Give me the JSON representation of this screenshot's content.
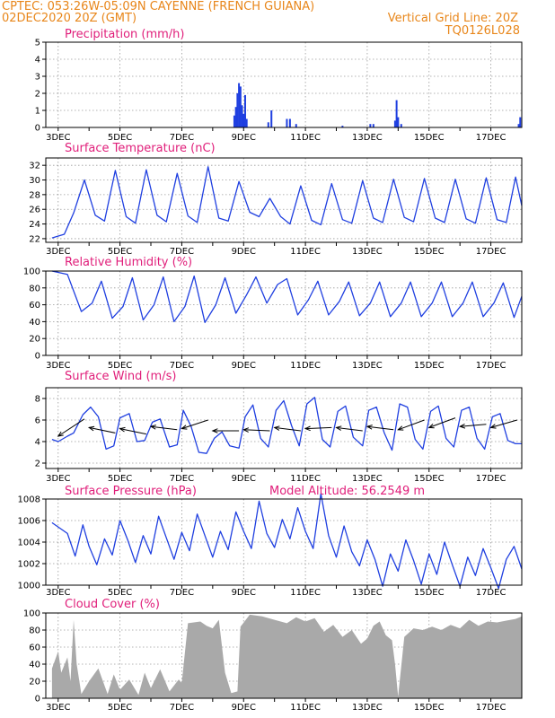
{
  "header": {
    "line1": "CPTEC:   053:26W-05:09N   CAYENNE (FRENCH GUIANA)",
    "line2_left": "02DEC2020 20Z (GMT)",
    "line2_right": "Vertical Grid Line: 20Z",
    "line3_right": "TQ0126L028"
  },
  "colors": {
    "header": "#e8861a",
    "title": "#e01e7a",
    "series": "#1f3fe0",
    "cloud": "#a9a9a9",
    "grid": "#9a9a9a"
  },
  "chart_data": [
    {
      "id": "precip",
      "type": "bar",
      "title": "Precipitation (mm/h)",
      "x_tick_labels": [
        "3DEC",
        "5DEC",
        "7DEC",
        "9DEC",
        "11DEC",
        "13DEC",
        "15DEC",
        "17DEC"
      ],
      "ylim": [
        0,
        5
      ],
      "y_ticks": [
        0,
        1,
        2,
        3,
        4,
        5
      ],
      "grid": true,
      "bars": [
        {
          "day": 8.7,
          "value": 0.7
        },
        {
          "day": 8.75,
          "value": 1.2
        },
        {
          "day": 8.8,
          "value": 2.0
        },
        {
          "day": 8.85,
          "value": 2.6
        },
        {
          "day": 8.9,
          "value": 2.4
        },
        {
          "day": 8.95,
          "value": 1.3
        },
        {
          "day": 9.0,
          "value": 0.8
        },
        {
          "day": 9.05,
          "value": 1.9
        },
        {
          "day": 9.1,
          "value": 0.5
        },
        {
          "day": 9.8,
          "value": 0.3
        },
        {
          "day": 9.9,
          "value": 1.0
        },
        {
          "day": 10.4,
          "value": 0.5
        },
        {
          "day": 10.5,
          "value": 0.5
        },
        {
          "day": 10.7,
          "value": 0.2
        },
        {
          "day": 12.2,
          "value": 0.1
        },
        {
          "day": 13.1,
          "value": 0.2
        },
        {
          "day": 13.2,
          "value": 0.2
        },
        {
          "day": 13.9,
          "value": 0.4
        },
        {
          "day": 13.95,
          "value": 1.6
        },
        {
          "day": 14.0,
          "value": 0.6
        },
        {
          "day": 14.1,
          "value": 0.2
        },
        {
          "day": 17.9,
          "value": 0.2
        },
        {
          "day": 17.95,
          "value": 0.6
        }
      ]
    },
    {
      "id": "temp",
      "type": "line",
      "title": "Surface Temperature (nC)",
      "x_tick_labels": [
        "3DEC",
        "5DEC",
        "7DEC",
        "9DEC",
        "11DEC",
        "13DEC",
        "15DEC",
        "17DEC"
      ],
      "ylim": [
        21.5,
        33
      ],
      "y_ticks": [
        22,
        24,
        26,
        28,
        30,
        32
      ],
      "grid": true,
      "points": [
        [
          2.8,
          22.1
        ],
        [
          3.2,
          22.6
        ],
        [
          3.5,
          25.5
        ],
        [
          3.85,
          30.0
        ],
        [
          4.2,
          25.2
        ],
        [
          4.5,
          24.4
        ],
        [
          4.85,
          31.3
        ],
        [
          5.2,
          25.0
        ],
        [
          5.5,
          24.1
        ],
        [
          5.85,
          31.4
        ],
        [
          6.2,
          25.2
        ],
        [
          6.5,
          24.3
        ],
        [
          6.85,
          30.9
        ],
        [
          7.2,
          25.1
        ],
        [
          7.5,
          24.2
        ],
        [
          7.85,
          31.8
        ],
        [
          8.2,
          24.8
        ],
        [
          8.5,
          24.4
        ],
        [
          8.85,
          29.8
        ],
        [
          9.2,
          25.6
        ],
        [
          9.5,
          25.0
        ],
        [
          9.85,
          27.5
        ],
        [
          10.2,
          25.0
        ],
        [
          10.5,
          24.0
        ],
        [
          10.85,
          29.2
        ],
        [
          11.2,
          24.5
        ],
        [
          11.5,
          23.9
        ],
        [
          11.85,
          29.5
        ],
        [
          12.2,
          24.6
        ],
        [
          12.5,
          24.1
        ],
        [
          12.85,
          29.9
        ],
        [
          13.2,
          24.8
        ],
        [
          13.5,
          24.2
        ],
        [
          13.85,
          30.1
        ],
        [
          14.2,
          24.9
        ],
        [
          14.5,
          24.3
        ],
        [
          14.85,
          30.2
        ],
        [
          15.2,
          24.8
        ],
        [
          15.5,
          24.2
        ],
        [
          15.85,
          30.1
        ],
        [
          16.2,
          24.7
        ],
        [
          16.5,
          24.1
        ],
        [
          16.85,
          30.3
        ],
        [
          17.2,
          24.6
        ],
        [
          17.5,
          24.2
        ],
        [
          17.8,
          30.4
        ],
        [
          18.0,
          26.5
        ]
      ]
    },
    {
      "id": "rh",
      "type": "line",
      "title": "Relative Humidity (%)",
      "x_tick_labels": [
        "3DEC",
        "5DEC",
        "7DEC",
        "9DEC",
        "11DEC",
        "13DEC",
        "15DEC",
        "17DEC"
      ],
      "ylim": [
        0,
        100
      ],
      "y_ticks": [
        0,
        20,
        40,
        60,
        80,
        100
      ],
      "grid": true,
      "points": [
        [
          2.8,
          100
        ],
        [
          3.3,
          96
        ],
        [
          3.75,
          52
        ],
        [
          4.1,
          62
        ],
        [
          4.4,
          88
        ],
        [
          4.75,
          44
        ],
        [
          5.1,
          58
        ],
        [
          5.4,
          92
        ],
        [
          5.75,
          42
        ],
        [
          6.1,
          60
        ],
        [
          6.4,
          93
        ],
        [
          6.75,
          40
        ],
        [
          7.1,
          58
        ],
        [
          7.4,
          94
        ],
        [
          7.75,
          39
        ],
        [
          8.1,
          60
        ],
        [
          8.4,
          92
        ],
        [
          8.75,
          50
        ],
        [
          9.1,
          72
        ],
        [
          9.4,
          93
        ],
        [
          9.75,
          62
        ],
        [
          10.1,
          84
        ],
        [
          10.4,
          91
        ],
        [
          10.75,
          48
        ],
        [
          11.1,
          66
        ],
        [
          11.4,
          88
        ],
        [
          11.75,
          48
        ],
        [
          12.1,
          64
        ],
        [
          12.4,
          87
        ],
        [
          12.75,
          47
        ],
        [
          13.1,
          62
        ],
        [
          13.4,
          87
        ],
        [
          13.75,
          46
        ],
        [
          14.1,
          62
        ],
        [
          14.4,
          87
        ],
        [
          14.75,
          46
        ],
        [
          15.1,
          62
        ],
        [
          15.4,
          87
        ],
        [
          15.75,
          46
        ],
        [
          16.1,
          62
        ],
        [
          16.4,
          87
        ],
        [
          16.75,
          46
        ],
        [
          17.1,
          62
        ],
        [
          17.4,
          86
        ],
        [
          17.75,
          45
        ],
        [
          18.0,
          70
        ]
      ]
    },
    {
      "id": "wind",
      "type": "line",
      "title": "Surface Wind (m/s)",
      "x_tick_labels": [
        "3DEC",
        "5DEC",
        "7DEC",
        "9DEC",
        "11DEC",
        "13DEC",
        "15DEC",
        "17DEC"
      ],
      "ylim": [
        1.5,
        9
      ],
      "y_ticks": [
        2,
        4,
        6,
        8
      ],
      "grid": true,
      "points": [
        [
          2.8,
          4.2
        ],
        [
          3.0,
          4.0
        ],
        [
          3.3,
          4.5
        ],
        [
          3.5,
          4.8
        ],
        [
          3.8,
          6.5
        ],
        [
          4.05,
          7.2
        ],
        [
          4.3,
          6.3
        ],
        [
          4.55,
          3.3
        ],
        [
          4.8,
          3.6
        ],
        [
          5.0,
          6.2
        ],
        [
          5.3,
          6.6
        ],
        [
          5.55,
          4.0
        ],
        [
          5.8,
          4.1
        ],
        [
          6.05,
          5.8
        ],
        [
          6.3,
          6.1
        ],
        [
          6.6,
          3.5
        ],
        [
          6.85,
          3.7
        ],
        [
          7.05,
          6.9
        ],
        [
          7.3,
          5.4
        ],
        [
          7.55,
          3.0
        ],
        [
          7.8,
          2.9
        ],
        [
          8.05,
          4.3
        ],
        [
          8.3,
          4.9
        ],
        [
          8.55,
          3.6
        ],
        [
          8.85,
          3.4
        ],
        [
          9.05,
          6.3
        ],
        [
          9.3,
          7.4
        ],
        [
          9.55,
          4.3
        ],
        [
          9.8,
          3.5
        ],
        [
          10.05,
          6.9
        ],
        [
          10.3,
          7.8
        ],
        [
          10.55,
          5.5
        ],
        [
          10.8,
          3.6
        ],
        [
          11.05,
          7.5
        ],
        [
          11.3,
          8.1
        ],
        [
          11.55,
          4.2
        ],
        [
          11.8,
          3.5
        ],
        [
          12.05,
          6.8
        ],
        [
          12.3,
          7.3
        ],
        [
          12.55,
          4.4
        ],
        [
          12.85,
          3.6
        ],
        [
          13.05,
          6.9
        ],
        [
          13.3,
          7.2
        ],
        [
          13.55,
          4.8
        ],
        [
          13.8,
          3.2
        ],
        [
          14.05,
          7.5
        ],
        [
          14.3,
          7.2
        ],
        [
          14.55,
          4.2
        ],
        [
          14.8,
          3.3
        ],
        [
          15.05,
          6.8
        ],
        [
          15.3,
          7.3
        ],
        [
          15.55,
          4.3
        ],
        [
          15.8,
          3.5
        ],
        [
          16.05,
          6.9
        ],
        [
          16.3,
          7.2
        ],
        [
          16.55,
          4.3
        ],
        [
          16.8,
          3.3
        ],
        [
          17.05,
          6.3
        ],
        [
          17.3,
          6.6
        ],
        [
          17.55,
          4.1
        ],
        [
          17.8,
          3.8
        ],
        [
          18.0,
          3.8
        ]
      ],
      "vectors": [
        [
          3.0,
          4.5,
          6.1
        ],
        [
          4.0,
          5.3,
          4.8
        ],
        [
          5.0,
          5.2,
          4.7
        ],
        [
          6.0,
          5.4,
          5.1
        ],
        [
          7.0,
          5.2,
          6.0
        ],
        [
          8.0,
          5.0,
          5.0
        ],
        [
          9.0,
          5.1,
          5.0
        ],
        [
          10.0,
          5.3,
          5.0
        ],
        [
          11.0,
          5.2,
          5.3
        ],
        [
          12.0,
          5.3,
          5.0
        ],
        [
          13.0,
          5.4,
          5.1
        ],
        [
          14.0,
          5.1,
          6.0
        ],
        [
          15.0,
          5.3,
          6.2
        ],
        [
          16.0,
          5.4,
          5.6
        ],
        [
          17.0,
          5.3,
          6.0
        ]
      ]
    },
    {
      "id": "pressure",
      "type": "line",
      "title": "Surface Pressure (hPa)",
      "annotation": "Model Altitude: 56.2549  m",
      "x_tick_labels": [
        "3DEC",
        "5DEC",
        "7DEC",
        "9DEC",
        "11DEC",
        "13DEC",
        "15DEC",
        "17DEC"
      ],
      "ylim": [
        1000,
        1008
      ],
      "y_ticks": [
        1000,
        1002,
        1004,
        1006,
        1008
      ],
      "grid": true,
      "points": [
        [
          2.8,
          1005.8
        ],
        [
          3.05,
          1005.3
        ],
        [
          3.3,
          1004.8
        ],
        [
          3.55,
          1002.7
        ],
        [
          3.8,
          1005.6
        ],
        [
          4.0,
          1003.6
        ],
        [
          4.25,
          1001.9
        ],
        [
          4.5,
          1004.3
        ],
        [
          4.75,
          1002.8
        ],
        [
          5.0,
          1006.0
        ],
        [
          5.25,
          1004.2
        ],
        [
          5.5,
          1002.1
        ],
        [
          5.75,
          1004.6
        ],
        [
          6.0,
          1002.9
        ],
        [
          6.25,
          1006.4
        ],
        [
          6.5,
          1004.4
        ],
        [
          6.75,
          1002.4
        ],
        [
          7.0,
          1004.9
        ],
        [
          7.25,
          1003.2
        ],
        [
          7.5,
          1006.6
        ],
        [
          7.75,
          1004.6
        ],
        [
          8.0,
          1002.6
        ],
        [
          8.25,
          1005.0
        ],
        [
          8.5,
          1003.3
        ],
        [
          8.75,
          1006.8
        ],
        [
          9.0,
          1005.0
        ],
        [
          9.25,
          1003.4
        ],
        [
          9.5,
          1007.8
        ],
        [
          9.75,
          1004.8
        ],
        [
          10.0,
          1003.5
        ],
        [
          10.25,
          1006.1
        ],
        [
          10.5,
          1004.3
        ],
        [
          10.75,
          1007.2
        ],
        [
          11.0,
          1005.0
        ],
        [
          11.25,
          1003.4
        ],
        [
          11.5,
          1008.5
        ],
        [
          11.75,
          1004.6
        ],
        [
          12.0,
          1002.6
        ],
        [
          12.25,
          1005.5
        ],
        [
          12.5,
          1003.1
        ],
        [
          12.75,
          1001.8
        ],
        [
          13.0,
          1004.2
        ],
        [
          13.25,
          1002.4
        ],
        [
          13.5,
          999.9
        ],
        [
          13.75,
          1002.9
        ],
        [
          14.0,
          1001.3
        ],
        [
          14.25,
          1004.2
        ],
        [
          14.5,
          1002.3
        ],
        [
          14.75,
          1000.1
        ],
        [
          15.0,
          1002.9
        ],
        [
          15.25,
          1001.0
        ],
        [
          15.5,
          1004.0
        ],
        [
          15.75,
          1001.9
        ],
        [
          16.0,
          999.9
        ],
        [
          16.25,
          1002.6
        ],
        [
          16.5,
          1000.9
        ],
        [
          16.75,
          1003.4
        ],
        [
          17.0,
          1001.6
        ],
        [
          17.25,
          999.7
        ],
        [
          17.5,
          1002.4
        ],
        [
          17.75,
          1003.6
        ],
        [
          18.0,
          1001.5
        ]
      ]
    },
    {
      "id": "cloud",
      "type": "area",
      "title": "Cloud Cover (%)",
      "x_tick_labels": [
        "3DEC",
        "5DEC",
        "7DEC",
        "9DEC",
        "11DEC",
        "13DEC",
        "15DEC",
        "17DEC"
      ],
      "ylim": [
        0,
        100
      ],
      "y_ticks": [
        0,
        20,
        40,
        60,
        80,
        100
      ],
      "grid": true,
      "points": [
        [
          2.8,
          35
        ],
        [
          3.0,
          55
        ],
        [
          3.1,
          30
        ],
        [
          3.3,
          48
        ],
        [
          3.4,
          20
        ],
        [
          3.5,
          92
        ],
        [
          3.6,
          40
        ],
        [
          3.75,
          5
        ],
        [
          4.0,
          20
        ],
        [
          4.3,
          35
        ],
        [
          4.6,
          5
        ],
        [
          4.8,
          28
        ],
        [
          5.0,
          10
        ],
        [
          5.3,
          22
        ],
        [
          5.6,
          4
        ],
        [
          5.8,
          30
        ],
        [
          6.0,
          12
        ],
        [
          6.3,
          34
        ],
        [
          6.6,
          8
        ],
        [
          6.9,
          22
        ],
        [
          7.0,
          18
        ],
        [
          7.2,
          88
        ],
        [
          7.6,
          90
        ],
        [
          7.8,
          85
        ],
        [
          8.0,
          82
        ],
        [
          8.2,
          92
        ],
        [
          8.4,
          30
        ],
        [
          8.6,
          6
        ],
        [
          8.8,
          8
        ],
        [
          8.9,
          84
        ],
        [
          9.2,
          98
        ],
        [
          9.6,
          96
        ],
        [
          10.0,
          92
        ],
        [
          10.4,
          88
        ],
        [
          10.7,
          95
        ],
        [
          11.0,
          90
        ],
        [
          11.3,
          94
        ],
        [
          11.6,
          78
        ],
        [
          11.9,
          86
        ],
        [
          12.2,
          72
        ],
        [
          12.5,
          80
        ],
        [
          12.8,
          64
        ],
        [
          13.0,
          70
        ],
        [
          13.2,
          85
        ],
        [
          13.4,
          90
        ],
        [
          13.6,
          74
        ],
        [
          13.8,
          68
        ],
        [
          13.9,
          40
        ],
        [
          14.0,
          2
        ],
        [
          14.2,
          72
        ],
        [
          14.5,
          82
        ],
        [
          14.8,
          80
        ],
        [
          15.1,
          84
        ],
        [
          15.4,
          80
        ],
        [
          15.7,
          86
        ],
        [
          16.0,
          82
        ],
        [
          16.3,
          92
        ],
        [
          16.6,
          85
        ],
        [
          16.9,
          90
        ],
        [
          17.2,
          89
        ],
        [
          17.5,
          91
        ],
        [
          17.8,
          93
        ],
        [
          18.0,
          96
        ]
      ]
    }
  ]
}
